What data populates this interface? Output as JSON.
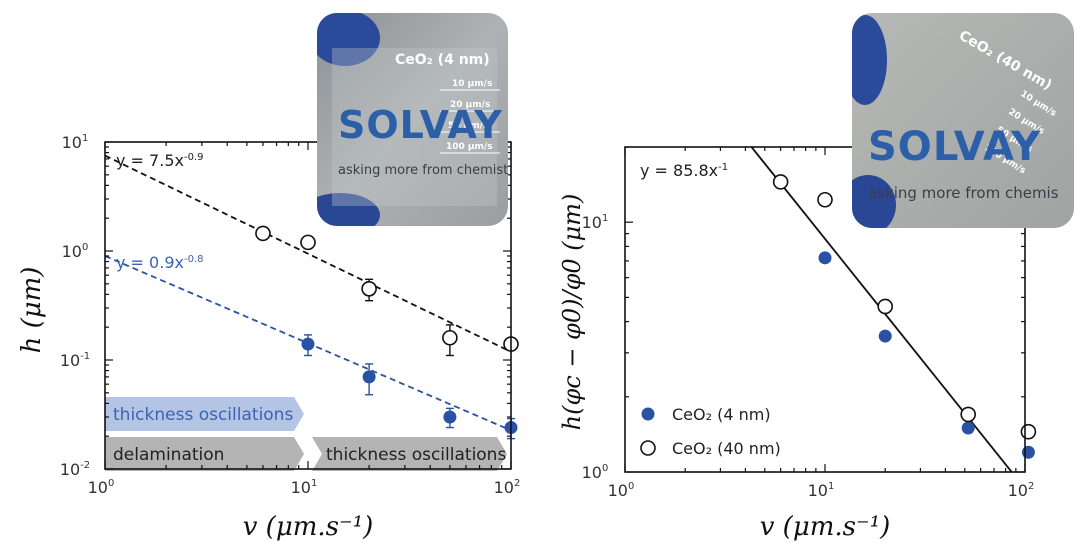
{
  "chart_data": [
    {
      "type": "scatter",
      "x_scale": "log",
      "y_scale": "log",
      "xlim": [
        1,
        100
      ],
      "ylim": [
        0.01,
        10
      ],
      "xlabel": "v (μm.s⁻¹)",
      "ylabel": "h (μm)",
      "x_ticks": [
        {
          "base": "10",
          "exp": "0"
        },
        {
          "base": "10",
          "exp": "1"
        },
        {
          "base": "10",
          "exp": "2"
        }
      ],
      "y_ticks": [
        {
          "base": "10",
          "exp": "-2"
        },
        {
          "base": "10",
          "exp": "-1"
        },
        {
          "base": "10",
          "exp": "0"
        },
        {
          "base": "10",
          "exp": "1"
        }
      ],
      "series": [
        {
          "marker": "filled-circle",
          "color": "#2a52a4",
          "x": [
            10,
            20,
            50,
            100
          ],
          "y": [
            0.14,
            0.07,
            0.03,
            0.024
          ],
          "err": [
            0.03,
            0.022,
            0.006,
            0.005
          ]
        },
        {
          "marker": "open-circle",
          "color": "#111111",
          "x": [
            6,
            10,
            20,
            50,
            100
          ],
          "y": [
            1.45,
            1.2,
            0.45,
            0.16,
            0.14
          ],
          "err": [
            0,
            0,
            0.1,
            0.05,
            0
          ]
        }
      ],
      "fits": [
        {
          "a": 7.5,
          "b": -0.9,
          "color": "#111111",
          "style": "dashed",
          "base": "y = 7.5x",
          "exp": "-0.9"
        },
        {
          "a": 0.9,
          "b": -0.8,
          "color": "#2a52a4",
          "style": "dashed",
          "base": "y = 0.9x",
          "exp": "-0.8"
        }
      ],
      "regions": [
        {
          "label": "thickness oscillations",
          "color": "#b4c4e4",
          "x_from": 1,
          "x_to": 10
        },
        {
          "label": "delamination",
          "color": "#b4b4b4",
          "x_from": 1,
          "x_to": 10
        },
        {
          "label": "thickness oscillations",
          "color": "#b4b4b4",
          "x_from": 10,
          "x_to": 100
        }
      ],
      "inset_photo": {
        "title": "CeO₂ (4 nm)",
        "brand": "SOLVAY",
        "tagline": "asking more from chemistry®",
        "speed_labels": [
          "10 μm/s",
          "20 μm/s",
          "50 μm/s",
          "100 μm/s"
        ]
      }
    },
    {
      "type": "scatter",
      "x_scale": "log",
      "y_scale": "log",
      "xlim": [
        1,
        100
      ],
      "ylim": [
        1,
        20
      ],
      "xlabel": "v (μm.s⁻¹)",
      "ylabel": "h(φc − φ0)/φ0 (μm)",
      "x_ticks": [
        {
          "base": "10",
          "exp": "0"
        },
        {
          "base": "10",
          "exp": "1"
        },
        {
          "base": "10",
          "exp": "2"
        }
      ],
      "y_ticks": [
        {
          "base": "10",
          "exp": "0"
        },
        {
          "base": "10",
          "exp": "1"
        }
      ],
      "series": [
        {
          "name": "CeO₂ (4 nm)",
          "marker": "filled-circle",
          "color": "#2a52a4",
          "x": [
            10,
            20,
            52,
            104
          ],
          "y": [
            7.2,
            3.5,
            1.5,
            1.2
          ]
        },
        {
          "name": "CeO₂ (40 nm)",
          "marker": "open-circle",
          "color": "#111111",
          "x": [
            6,
            10,
            20,
            52,
            104
          ],
          "y": [
            14.5,
            12.3,
            4.6,
            1.7,
            1.45
          ]
        }
      ],
      "fits": [
        {
          "a": 85.8,
          "b": -1,
          "color": "#111111",
          "style": "solid",
          "base": "y = 85.8x",
          "exp": "-1"
        }
      ],
      "legend": {
        "placement": "lower-left"
      },
      "inset_photo": {
        "title": "CeO₂ (40 nm)",
        "brand": "SOLVAY",
        "tagline": "asking more from chemis",
        "speed_labels": [
          "10 μm/s",
          "20 μm/s",
          "50 μm/s",
          "100 μm/s"
        ]
      }
    }
  ]
}
